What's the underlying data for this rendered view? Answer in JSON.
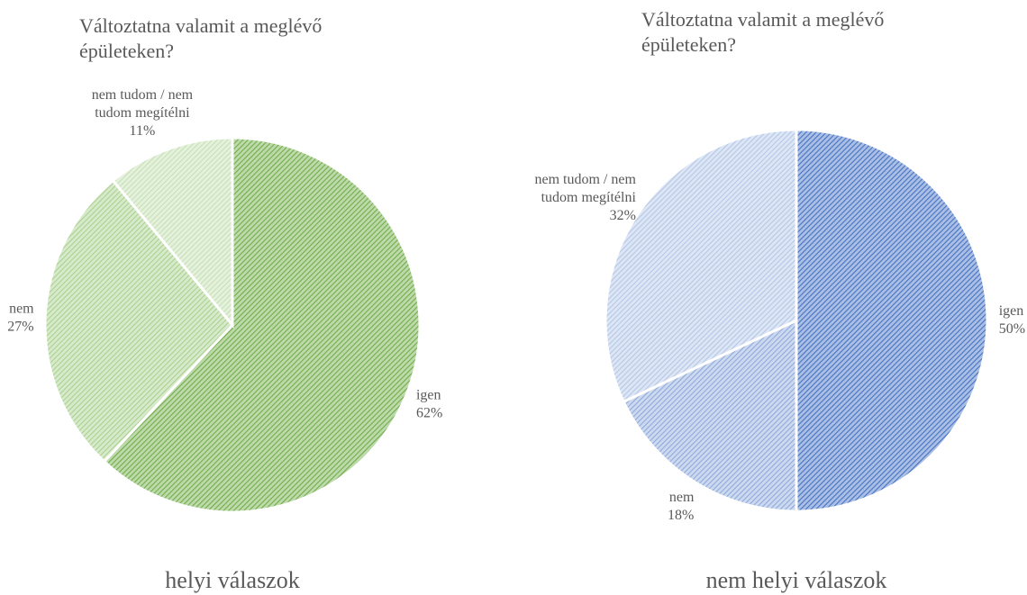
{
  "chart_data": [
    {
      "type": "pie",
      "title": "Változtatna valamit a meglévő épületeken?",
      "caption": "helyi válaszok",
      "categories": [
        "igen",
        "nem",
        "nem tudom / nem tudom megítélni"
      ],
      "values": [
        62,
        27,
        11
      ],
      "value_labels": [
        "62%",
        "27%",
        "11%"
      ],
      "colors": [
        "#70ad47",
        "#a9d18e",
        "#c5e0b4"
      ]
    },
    {
      "type": "pie",
      "title": "Változtatna valamit a meglévő épületeken?",
      "caption": "nem helyi válaszok",
      "categories": [
        "igen",
        "nem",
        "nem tudom / nem tudom megítélni"
      ],
      "values": [
        50,
        18,
        32
      ],
      "value_labels": [
        "50%",
        "18%",
        "32%"
      ],
      "colors": [
        "#4472c4",
        "#8faadc",
        "#b4c7e7"
      ]
    }
  ]
}
